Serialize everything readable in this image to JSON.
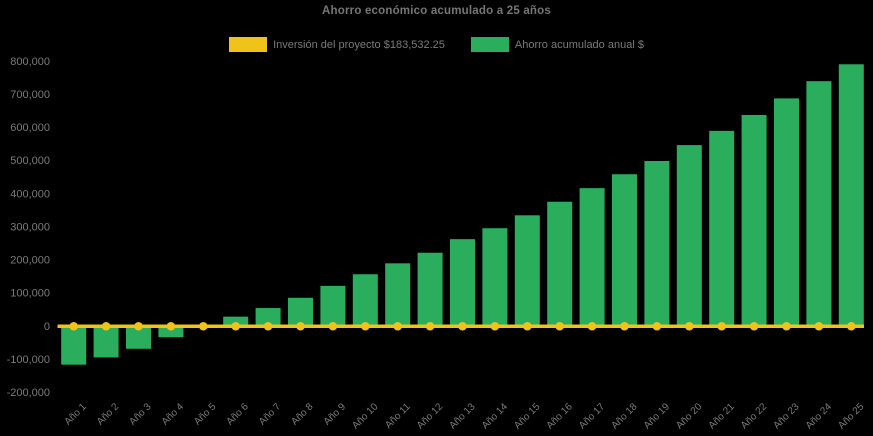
{
  "title": "Ahorro económico acumulado a 25 años",
  "legend": [
    {
      "label": "Inversión del proyecto $183,532.25",
      "color": "#EFC31A",
      "icon": "yellow-swatch"
    },
    {
      "label": "Ahorro acumulado anual $",
      "color": "#2BAD5E",
      "icon": "green-swatch"
    }
  ],
  "chart_data": {
    "type": "bar",
    "title": "Ahorro económico acumulado a 25 años",
    "categories": [
      "Año 1",
      "Año 2",
      "Año 3",
      "Año 4",
      "Año 5",
      "Año 6",
      "Año 7",
      "Año 8",
      "Año 9",
      "Año 10",
      "Año 11",
      "Año 12",
      "Año 13",
      "Año 14",
      "Año 15",
      "Año 16",
      "Año 17",
      "Año 18",
      "Año 19",
      "Año 20",
      "Año 21",
      "Año 22",
      "Año 23",
      "Año 24",
      "Año 25"
    ],
    "series": [
      {
        "name": "Ahorro acumulado anual $",
        "type": "bar",
        "color": "#2BAD5E",
        "values": [
          -116000,
          -94000,
          -68000,
          -33000,
          -5000,
          29000,
          55000,
          86000,
          122000,
          157000,
          190000,
          222000,
          263000,
          296000,
          335000,
          376000,
          417000,
          459000,
          499000,
          547000,
          590000,
          638000,
          688000,
          740000,
          791000
        ]
      },
      {
        "name": "Inversión del proyecto $183,532.25",
        "type": "line",
        "color": "#EFC31A",
        "marker": "circle",
        "values": [
          0,
          0,
          0,
          0,
          0,
          0,
          0,
          0,
          0,
          0,
          0,
          0,
          0,
          0,
          0,
          0,
          0,
          0,
          0,
          0,
          0,
          0,
          0,
          0,
          0
        ]
      }
    ],
    "xlabel": "",
    "ylabel": "",
    "ylim": [
      -200000,
      800000
    ],
    "y_tick_step": 100000,
    "y_ticks": [
      "800,000",
      "700,000",
      "600,000",
      "500,000",
      "400,000",
      "300,000",
      "200,000",
      "100,000",
      "0",
      "-100,000",
      "-200,000"
    ],
    "x_label_rotation": -45,
    "grid": "off",
    "legend_position": "top",
    "background": "#000000",
    "text_color": "#7a7a7a"
  }
}
